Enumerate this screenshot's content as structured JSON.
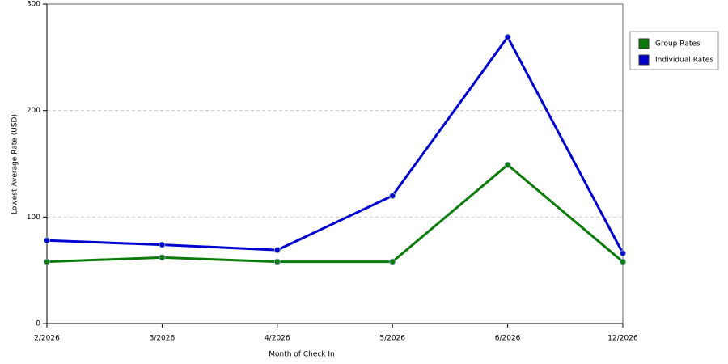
{
  "chart_data": {
    "type": "line",
    "x_label": "Month of Check In",
    "y_label": "Lowest Average Rate (USD)",
    "categories": [
      "2/2026",
      "3/2026",
      "4/2026",
      "5/2026",
      "6/2026",
      "12/2026"
    ],
    "series": [
      {
        "name": "Group Rates",
        "color": "#0b7a0b",
        "values": [
          58,
          62,
          58,
          58,
          149,
          58
        ]
      },
      {
        "name": "Individual Rates",
        "color": "#0000cc",
        "values": [
          78,
          74,
          69,
          120,
          269,
          66
        ]
      }
    ],
    "ylim": [
      0,
      300
    ],
    "yticks": [
      0,
      100,
      200,
      300
    ],
    "grid": true,
    "legend": "right"
  }
}
